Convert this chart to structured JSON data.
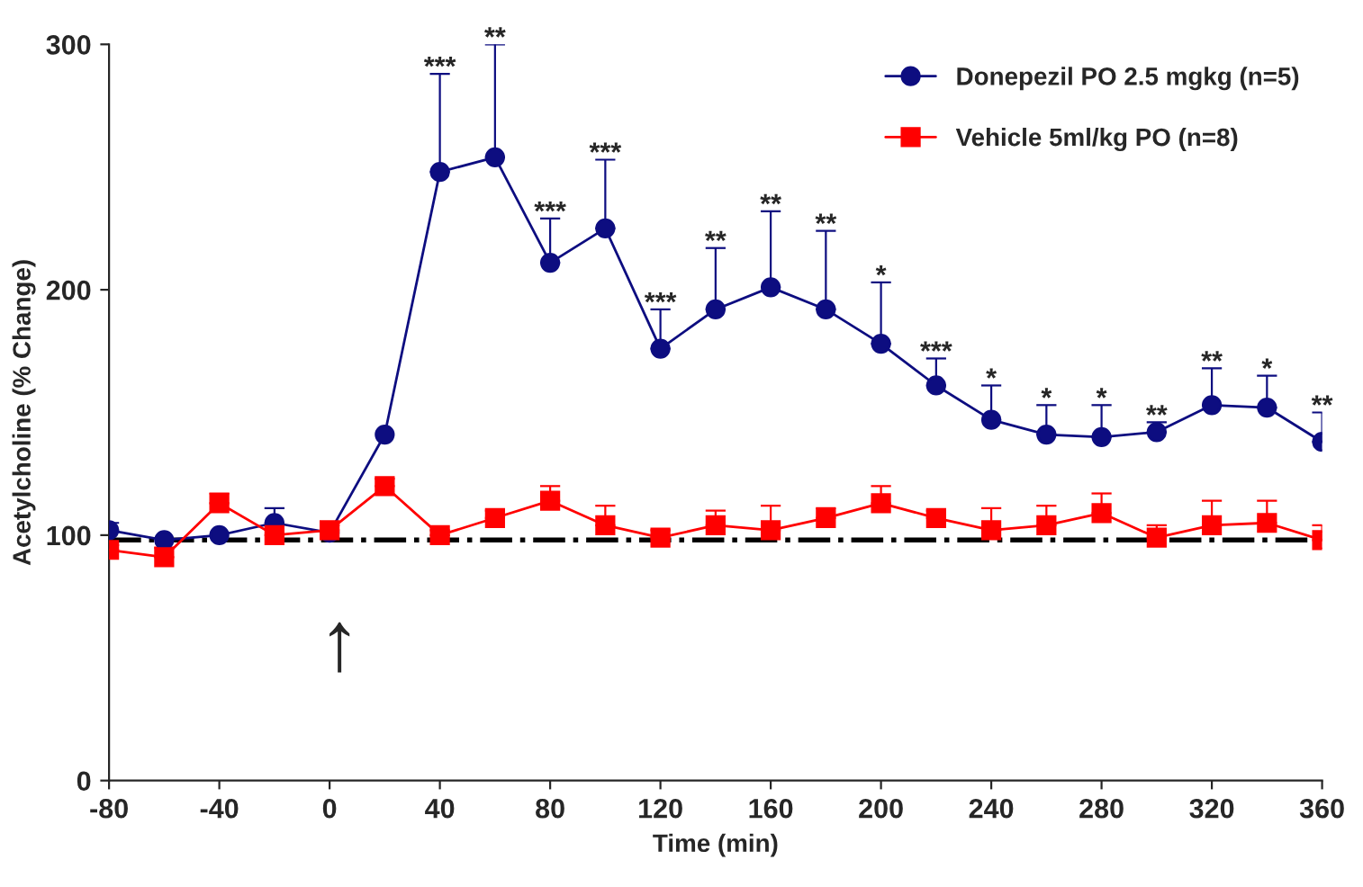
{
  "chart_data": {
    "type": "line",
    "xlabel": "Time (min)",
    "ylabel": "Acetylcholine (% Change)",
    "x": [
      -80,
      -60,
      -40,
      -20,
      0,
      20,
      40,
      60,
      80,
      100,
      120,
      140,
      160,
      180,
      200,
      220,
      240,
      260,
      280,
      300,
      320,
      340,
      360
    ],
    "series": [
      {
        "name": "Donepezil PO 2.5 mgkg (n=5)",
        "color": "#0d0d80",
        "marker": "circle",
        "values": [
          102,
          98,
          100,
          105,
          101,
          141,
          248,
          254,
          211,
          225,
          176,
          192,
          201,
          192,
          178,
          161,
          147,
          141,
          140,
          142,
          153,
          152,
          138
        ],
        "errors": [
          [
            102,
            105
          ],
          null,
          null,
          [
            105,
            111
          ],
          null,
          null,
          [
            248,
            288
          ],
          [
            254,
            300
          ],
          [
            211,
            229
          ],
          [
            225,
            253
          ],
          [
            176,
            192
          ],
          [
            192,
            217
          ],
          [
            201,
            232
          ],
          [
            192,
            224
          ],
          [
            178,
            203
          ],
          [
            161,
            172
          ],
          [
            147,
            161
          ],
          [
            141,
            153
          ],
          [
            140,
            153
          ],
          [
            142,
            146
          ],
          [
            153,
            168
          ],
          [
            152,
            165
          ],
          [
            138,
            150
          ]
        ]
      },
      {
        "name": "Vehicle 5ml/kg PO (n=8)",
        "color": "#ff0000",
        "marker": "square",
        "values": [
          94,
          91,
          113,
          100,
          102,
          120,
          100,
          107,
          114,
          104,
          99,
          104,
          102,
          107,
          113,
          107,
          102,
          104,
          109,
          99,
          104,
          105,
          98
        ],
        "errors": [
          [
            94,
            96
          ],
          [
            91,
            95
          ],
          [
            113,
            117
          ],
          [
            100,
            103
          ],
          [
            102,
            104
          ],
          [
            120,
            123
          ],
          [
            100,
            102
          ],
          [
            107,
            110
          ],
          [
            114,
            120
          ],
          [
            104,
            112
          ],
          [
            99,
            102
          ],
          [
            104,
            110
          ],
          [
            102,
            112
          ],
          [
            107,
            111
          ],
          [
            113,
            120
          ],
          [
            107,
            110
          ],
          [
            102,
            111
          ],
          [
            104,
            112
          ],
          [
            109,
            117
          ],
          [
            99,
            104
          ],
          [
            104,
            114
          ],
          [
            105,
            114
          ],
          [
            98,
            104
          ]
        ]
      }
    ],
    "xlim": [
      -80,
      360
    ],
    "xticks": [
      -80,
      -40,
      0,
      40,
      80,
      120,
      160,
      200,
      240,
      280,
      320,
      360
    ],
    "ylim": [
      0,
      300
    ],
    "yticks": [
      0,
      100,
      200,
      300
    ],
    "ref_lines": [
      {
        "axis": "y",
        "value": 98,
        "color": "#000000",
        "line_style": "dashdot"
      }
    ],
    "annotations": [
      "↑",
      {
        "text": "***",
        "x": 40,
        "y": 288
      },
      {
        "text": "**",
        "x": 60,
        "y": 300
      },
      {
        "text": "***",
        "x": 80,
        "y": 229
      },
      {
        "text": "***",
        "x": 100,
        "y": 253
      },
      {
        "text": "***",
        "x": 120,
        "y": 192
      },
      {
        "text": "**",
        "x": 140,
        "y": 217
      },
      {
        "text": "**",
        "x": 160,
        "y": 232
      },
      {
        "text": "**",
        "x": 180,
        "y": 224
      },
      {
        "text": "*",
        "x": 200,
        "y": 203
      },
      {
        "text": "***",
        "x": 220,
        "y": 172
      },
      {
        "text": "*",
        "x": 240,
        "y": 161
      },
      {
        "text": "*",
        "x": 260,
        "y": 153
      },
      {
        "text": "*",
        "x": 280,
        "y": 153
      },
      {
        "text": "**",
        "x": 300,
        "y": 146
      },
      {
        "text": "**",
        "x": 320,
        "y": 168
      },
      {
        "text": "*",
        "x": 340,
        "y": 165
      },
      {
        "text": "**",
        "x": 360,
        "y": 150
      }
    ],
    "legend": "top right",
    "grid": false
  }
}
